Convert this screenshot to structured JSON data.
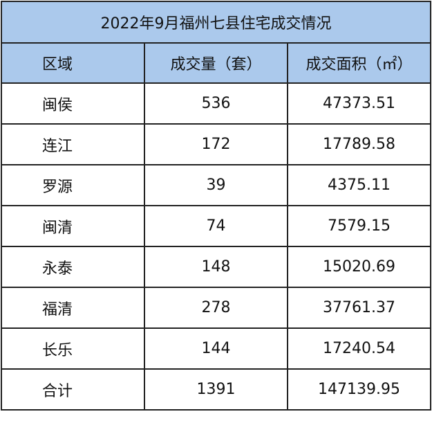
{
  "title": "2022年9月福州七县住宅成交情况",
  "headers": [
    "区域",
    "成交量（套）",
    "成交面积（㎡）"
  ],
  "rows": [
    [
      "闽侯",
      "536",
      "47373.51"
    ],
    [
      "连江",
      "172",
      "17789.58"
    ],
    [
      "罗源",
      "39",
      "4375.11"
    ],
    [
      "闽清",
      "74",
      "7579.15"
    ],
    [
      "永泰",
      "148",
      "15020.69"
    ],
    [
      "福清",
      "278",
      "37761.37"
    ],
    [
      "长乐",
      "144",
      "17240.54"
    ],
    [
      "合计",
      "1391",
      "147139.95"
    ]
  ],
  "colors": {
    "header_bg": "#abc9ec",
    "border": "#222222"
  }
}
